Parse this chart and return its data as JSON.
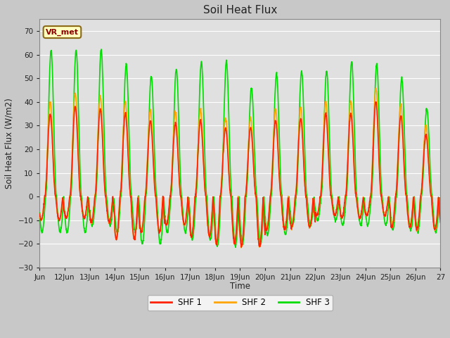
{
  "title": "Soil Heat Flux",
  "ylabel": "Soil Heat Flux (W/m2)",
  "xlabel": "Time",
  "ylim": [
    -30,
    75
  ],
  "yticks": [
    -30,
    -20,
    -10,
    0,
    10,
    20,
    30,
    40,
    50,
    60,
    70
  ],
  "xtick_labels": [
    "Jun",
    "12Jun",
    "13Jun",
    "14Jun",
    "15Jun",
    "16Jun",
    "17Jun",
    "18Jun",
    "19Jun",
    "20Jun",
    "21Jun",
    "22Jun",
    "23Jun",
    "24Jun",
    "25Jun",
    "26Jun",
    "27"
  ],
  "colors": {
    "SHF1": "#ff2200",
    "SHF2": "#ffa500",
    "SHF3": "#00dd00"
  },
  "legend_labels": [
    "SHF 1",
    "SHF 2",
    "SHF 3"
  ],
  "annotation_text": "VR_met",
  "background_color": "#e0e0e0",
  "fig_background": "#c8c8c8",
  "grid_color": "#ffffff",
  "line_width": 1.2,
  "shf12_day_amps": [
    35,
    38,
    37,
    35,
    32,
    31,
    32,
    29,
    29,
    32,
    33,
    35,
    35,
    40,
    34,
    26
  ],
  "shf12_night_mins": [
    -10,
    -9,
    -11,
    -18,
    -15,
    -12,
    -17,
    -20,
    -21,
    -14,
    -13,
    -8,
    -9,
    -8,
    -13,
    -14
  ],
  "shf3_day_amps": [
    62,
    62,
    62,
    56,
    51,
    54,
    57,
    57,
    46,
    52,
    53,
    53,
    57,
    56,
    50,
    37
  ],
  "shf3_night_mins": [
    -15,
    -15,
    -12,
    -15,
    -20,
    -15,
    -18,
    -21,
    -20,
    -16,
    -12,
    -10,
    -12,
    -12,
    -14,
    -15
  ]
}
